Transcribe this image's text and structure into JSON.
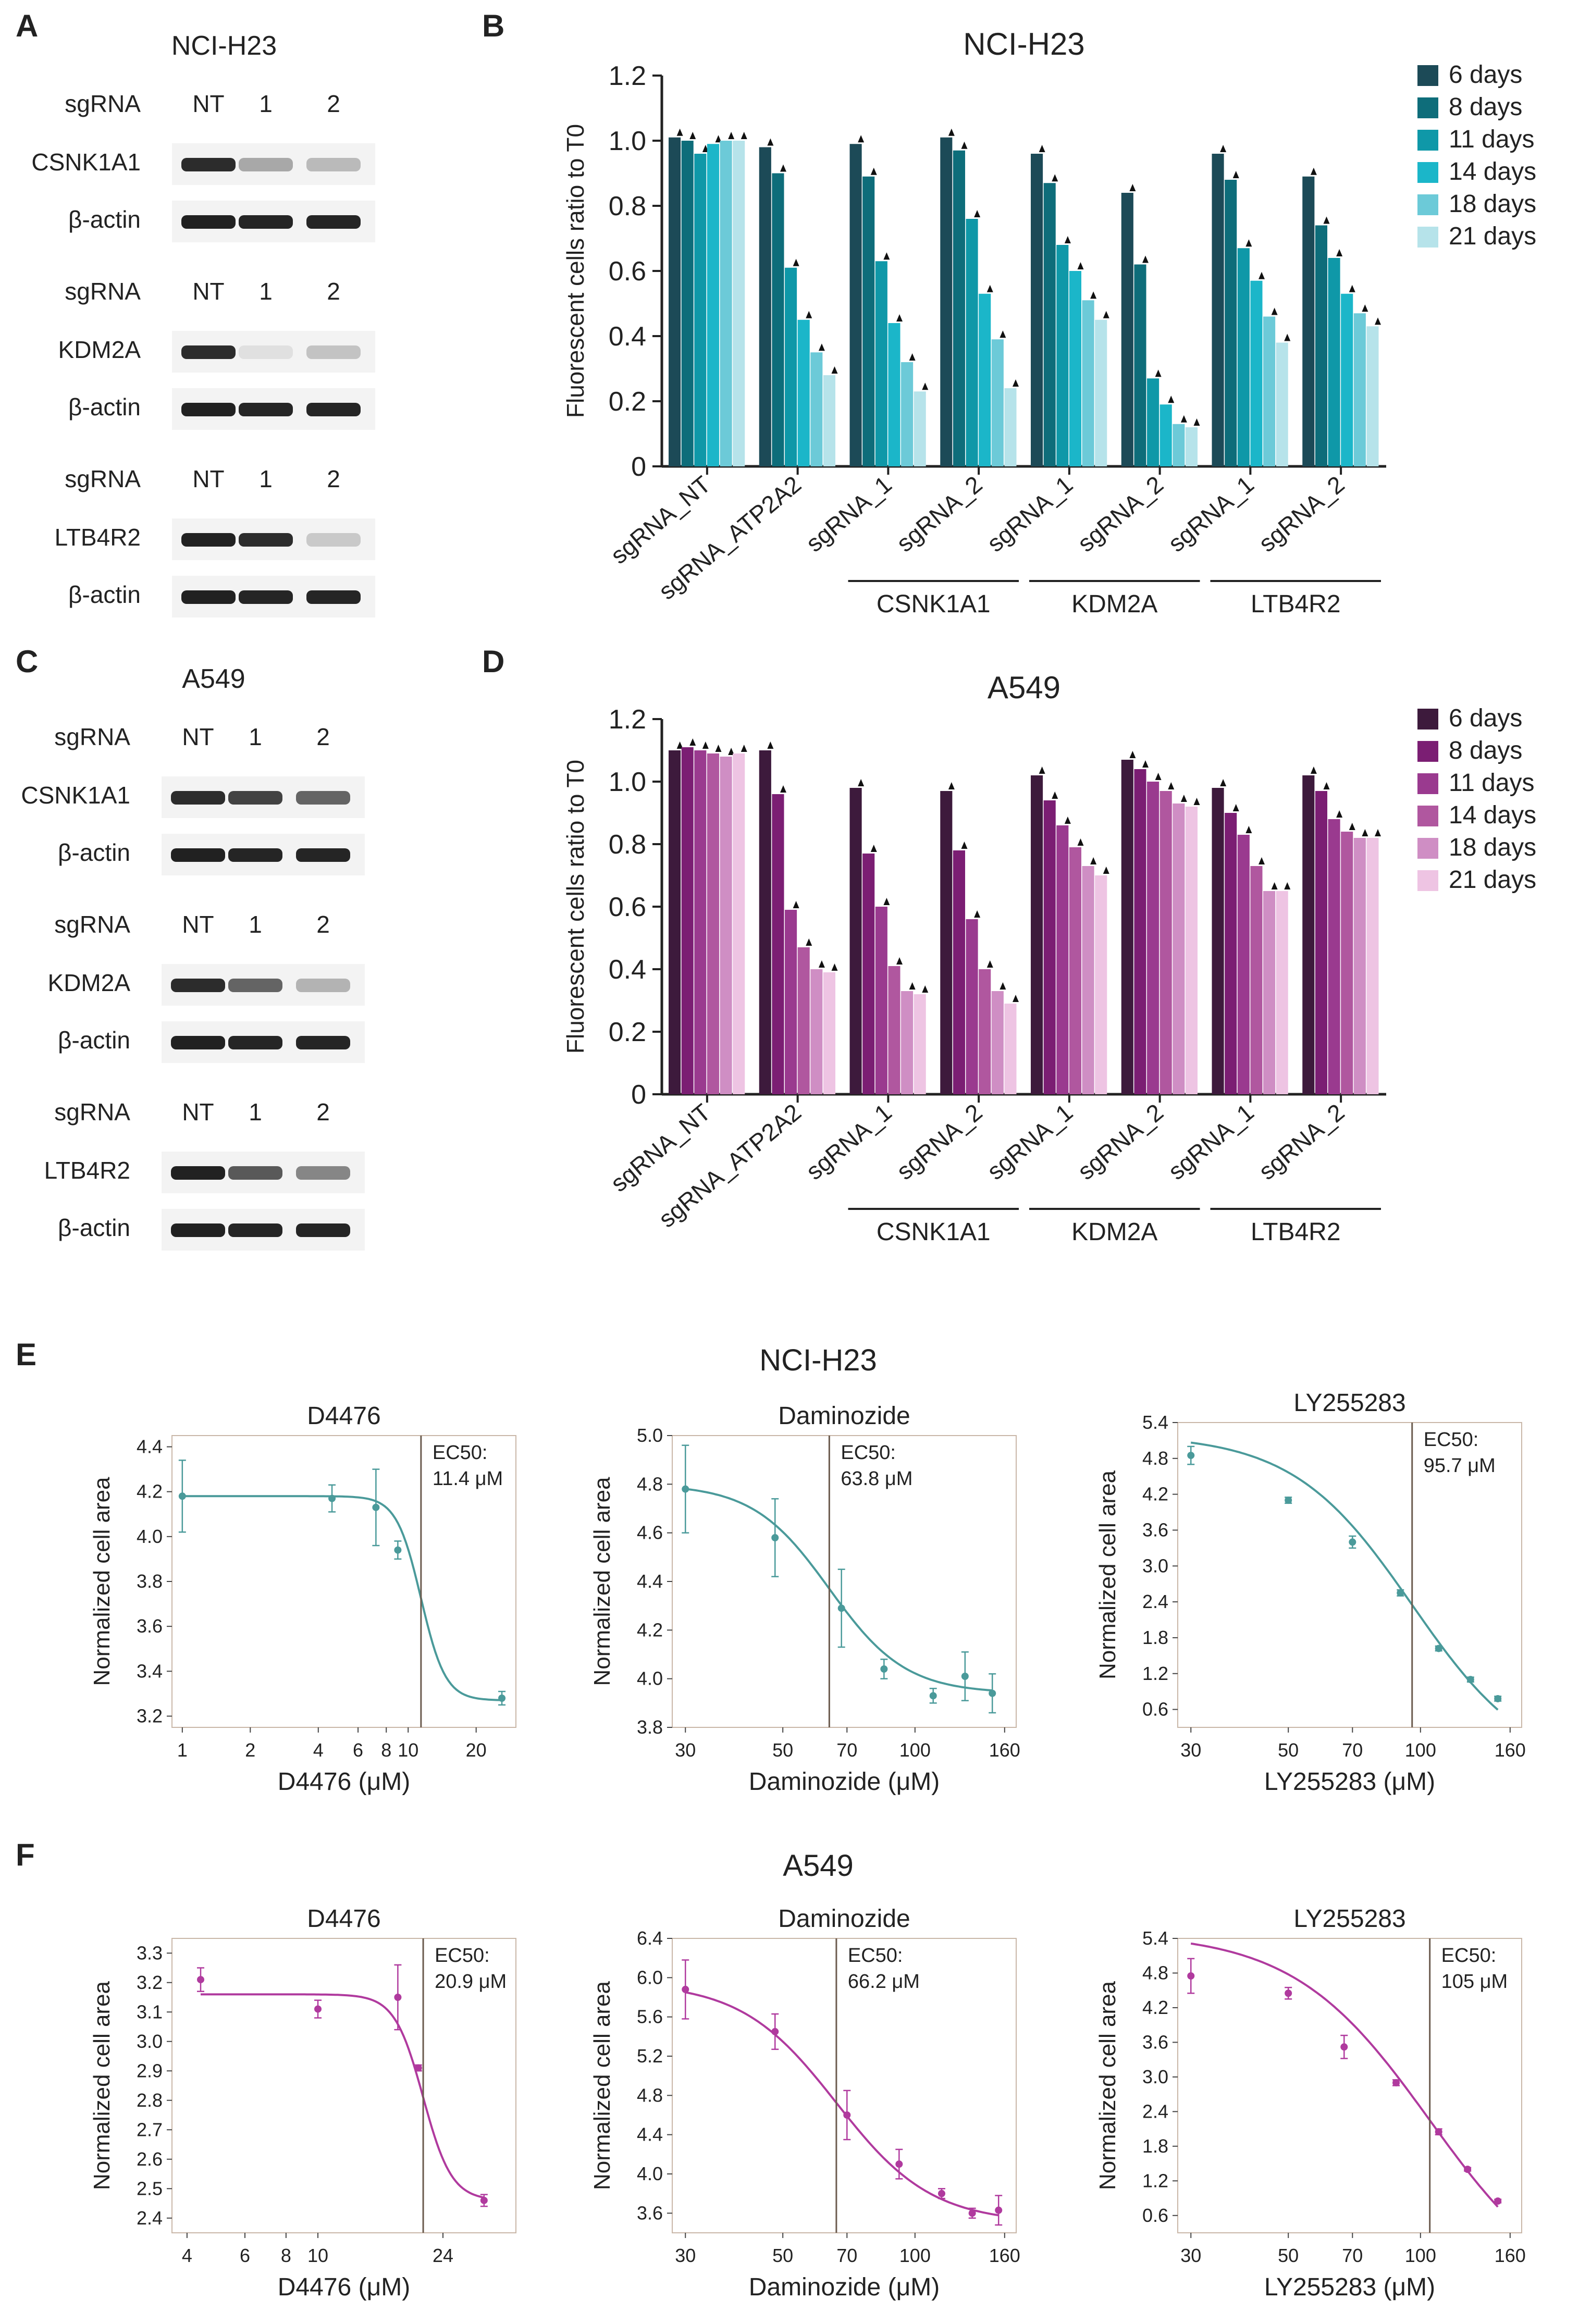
{
  "panel_letters": [
    "A",
    "B",
    "C",
    "D",
    "E",
    "F"
  ],
  "colors": {
    "purple": [
      "#3d1a3c",
      "#7b1e73",
      "#9a3a8f",
      "#b0579f",
      "#cf8ec4",
      "#eec4e3"
    ],
    "teal": [
      "#1c4a57",
      "#0e6d7a",
      "#0f98a8",
      "#1bb6c9",
      "#6ccad8",
      "#b6e3ea"
    ],
    "curve_teal": "#4a9a9a",
    "curve_magenta": "#b03a9e",
    "ec50_line": "#6b5b4e"
  },
  "western_blots": [
    {
      "panel": "A",
      "title": "NCI-H23",
      "groups": [
        {
          "header": [
            "sgRNA",
            "NT",
            "1",
            "2"
          ],
          "rows": [
            {
              "label": "CSNK1A1",
              "intensity": [
                0.85,
                0.3,
                0.22
              ]
            },
            {
              "label": "β-actin",
              "intensity": [
                0.9,
                0.88,
                0.88
              ]
            }
          ]
        },
        {
          "header": [
            "sgRNA",
            "NT",
            "1",
            "2"
          ],
          "rows": [
            {
              "label": "KDM2A",
              "intensity": [
                0.85,
                0.05,
                0.18
              ]
            },
            {
              "label": "β-actin",
              "intensity": [
                0.9,
                0.88,
                0.88
              ]
            }
          ]
        },
        {
          "header": [
            "sgRNA",
            "NT",
            "1",
            "2"
          ],
          "rows": [
            {
              "label": "LTB4R2",
              "intensity": [
                0.9,
                0.85,
                0.15
              ]
            },
            {
              "label": "β-actin",
              "intensity": [
                0.9,
                0.88,
                0.88
              ]
            }
          ]
        }
      ]
    },
    {
      "panel": "C",
      "title": "A549",
      "groups": [
        {
          "header": [
            "sgRNA",
            "NT",
            "1",
            "2"
          ],
          "rows": [
            {
              "label": "CSNK1A1",
              "intensity": [
                0.85,
                0.75,
                0.6
              ]
            },
            {
              "label": "β-actin",
              "intensity": [
                0.9,
                0.88,
                0.88
              ]
            }
          ]
        },
        {
          "header": [
            "sgRNA",
            "NT",
            "1",
            "2"
          ],
          "rows": [
            {
              "label": "KDM2A",
              "intensity": [
                0.85,
                0.6,
                0.25
              ]
            },
            {
              "label": "β-actin",
              "intensity": [
                0.9,
                0.88,
                0.88
              ]
            }
          ]
        },
        {
          "header": [
            "sgRNA",
            "NT",
            "1",
            "2"
          ],
          "rows": [
            {
              "label": "LTB4R2",
              "intensity": [
                0.9,
                0.65,
                0.45
              ]
            },
            {
              "label": "β-actin",
              "intensity": [
                0.9,
                0.88,
                0.88
              ]
            }
          ]
        }
      ]
    }
  ],
  "chart_data": [
    {
      "panel": "B",
      "type": "bar",
      "title": "NCI-H23",
      "ylabel": "Fluorescent cells ratio to T0",
      "ylim": [
        0,
        1.2
      ],
      "yticks": [
        "0",
        "0.2",
        "0.4",
        "0.6",
        "0.8",
        "1.0",
        "1.2"
      ],
      "categories": [
        "sgRNA_NT",
        "sgRNA_ATP2A2",
        "sgRNA_1",
        "sgRNA_2",
        "sgRNA_1",
        "sgRNA_2",
        "sgRNA_1",
        "sgRNA_2"
      ],
      "groups": [
        {
          "label": "CSNK1A1",
          "from": 2,
          "to": 3
        },
        {
          "label": "KDM2A",
          "from": 4,
          "to": 5
        },
        {
          "label": "LTB4R2",
          "from": 6,
          "to": 7
        }
      ],
      "legend_position": "top-right",
      "series": [
        {
          "name": "6 days",
          "values": [
            1.01,
            0.98,
            0.99,
            1.01,
            0.96,
            0.84,
            0.96,
            0.89
          ]
        },
        {
          "name": "8 days",
          "values": [
            1.0,
            0.9,
            0.89,
            0.97,
            0.87,
            0.62,
            0.88,
            0.74
          ]
        },
        {
          "name": "11 days",
          "values": [
            0.96,
            0.61,
            0.63,
            0.76,
            0.68,
            0.27,
            0.67,
            0.64
          ]
        },
        {
          "name": "14 days",
          "values": [
            0.99,
            0.45,
            0.44,
            0.53,
            0.6,
            0.19,
            0.57,
            0.53
          ]
        },
        {
          "name": "18 days",
          "values": [
            1.0,
            0.35,
            0.32,
            0.39,
            0.51,
            0.13,
            0.46,
            0.47
          ]
        },
        {
          "name": "21 days",
          "values": [
            1.0,
            0.28,
            0.23,
            0.24,
            0.45,
            0.12,
            0.38,
            0.43
          ]
        }
      ]
    },
    {
      "panel": "D",
      "type": "bar",
      "title": "A549",
      "ylabel": "Fluorescent cells ratio to T0",
      "ylim": [
        0,
        1.2
      ],
      "yticks": [
        "0",
        "0.2",
        "0.4",
        "0.6",
        "0.8",
        "1.0",
        "1.2"
      ],
      "categories": [
        "sgRNA_NT",
        "sgRNA_ATP2A2",
        "sgRNA_1",
        "sgRNA_2",
        "sgRNA_1",
        "sgRNA_2",
        "sgRNA_1",
        "sgRNA_2"
      ],
      "groups": [
        {
          "label": "CSNK1A1",
          "from": 2,
          "to": 3
        },
        {
          "label": "KDM2A",
          "from": 4,
          "to": 5
        },
        {
          "label": "LTB4R2",
          "from": 6,
          "to": 7
        }
      ],
      "legend_position": "top-right",
      "series": [
        {
          "name": "6 days",
          "values": [
            1.1,
            1.1,
            0.98,
            0.97,
            1.02,
            1.07,
            0.98,
            1.02
          ]
        },
        {
          "name": "8 days",
          "values": [
            1.11,
            0.96,
            0.77,
            0.78,
            0.94,
            1.04,
            0.9,
            0.97
          ]
        },
        {
          "name": "11 days",
          "values": [
            1.1,
            0.59,
            0.6,
            0.56,
            0.86,
            1.0,
            0.83,
            0.88
          ]
        },
        {
          "name": "14 days",
          "values": [
            1.09,
            0.47,
            0.41,
            0.4,
            0.79,
            0.97,
            0.73,
            0.84
          ]
        },
        {
          "name": "18 days",
          "values": [
            1.08,
            0.4,
            0.33,
            0.33,
            0.73,
            0.93,
            0.65,
            0.82
          ]
        },
        {
          "name": "21 days",
          "values": [
            1.09,
            0.39,
            0.32,
            0.29,
            0.7,
            0.92,
            0.65,
            0.82
          ]
        }
      ]
    }
  ],
  "dose_response_rows": [
    {
      "panel": "E",
      "cell_line": "NCI-H23",
      "color_key": "curve_teal",
      "plots": [
        {
          "type": "scatter",
          "title": "D4476",
          "xlabel": "D4476 (μM)",
          "ylabel": "Normalized cell area",
          "x_scale": "log",
          "xlim": [
            0.9,
            30
          ],
          "xticks": [
            {
              "v": 1,
              "l": "1"
            },
            {
              "v": 2,
              "l": "2"
            },
            {
              "v": 4,
              "l": "4"
            },
            {
              "v": 6,
              "l": "6"
            },
            {
              "v": 8,
              "l": "8"
            },
            {
              "v": 10,
              "l": "10"
            },
            {
              "v": 20,
              "l": "20"
            }
          ],
          "ylim": [
            3.15,
            4.45
          ],
          "yticks": [
            "3.2",
            "3.4",
            "3.6",
            "3.8",
            "4.0",
            "4.2",
            "4.4"
          ],
          "ec50_label": "EC50:",
          "ec50_text": "11.4 μM",
          "ec50": 11.4,
          "hill": {
            "top": 4.18,
            "bottom": 3.27,
            "slope": 8
          },
          "points": [
            {
              "x": 1,
              "y": 4.18,
              "err": 0.16
            },
            {
              "x": 4.6,
              "y": 4.17,
              "err": 0.06
            },
            {
              "x": 7.2,
              "y": 4.13,
              "err": 0.17
            },
            {
              "x": 9,
              "y": 3.94,
              "err": 0.04
            },
            {
              "x": 26,
              "y": 3.28,
              "err": 0.03
            }
          ]
        },
        {
          "type": "scatter",
          "title": "Daminozide",
          "xlabel": "Daminozide (μM)",
          "ylabel": "Normalized cell area",
          "x_scale": "log",
          "xlim": [
            28,
            170
          ],
          "xticks": [
            {
              "v": 30,
              "l": "30"
            },
            {
              "v": 50,
              "l": "50"
            },
            {
              "v": 70,
              "l": "70"
            },
            {
              "v": 100,
              "l": "100"
            },
            {
              "v": 160,
              "l": "160"
            }
          ],
          "ylim": [
            3.8,
            5.0
          ],
          "yticks": [
            "3.8",
            "4.0",
            "4.2",
            "4.4",
            "4.6",
            "4.8",
            "5.0"
          ],
          "ec50_label": "EC50:",
          "ec50_text": "63.8 μM",
          "ec50": 63.8,
          "hill": {
            "top": 4.8,
            "bottom": 3.94,
            "slope": 5
          },
          "points": [
            {
              "x": 30,
              "y": 4.78,
              "err": 0.18
            },
            {
              "x": 48,
              "y": 4.58,
              "err": 0.16
            },
            {
              "x": 68,
              "y": 4.29,
              "err": 0.16
            },
            {
              "x": 85,
              "y": 4.04,
              "err": 0.04
            },
            {
              "x": 110,
              "y": 3.93,
              "err": 0.03
            },
            {
              "x": 130,
              "y": 4.01,
              "err": 0.1
            },
            {
              "x": 150,
              "y": 3.94,
              "err": 0.08
            }
          ]
        },
        {
          "type": "scatter",
          "title": "LY255283",
          "xlabel": "LY255283 (μM)",
          "ylabel": "Normalized cell area",
          "x_scale": "log",
          "xlim": [
            28,
            170
          ],
          "xticks": [
            {
              "v": 30,
              "l": "30"
            },
            {
              "v": 50,
              "l": "50"
            },
            {
              "v": 70,
              "l": "70"
            },
            {
              "v": 100,
              "l": "100"
            },
            {
              "v": 160,
              "l": "160"
            }
          ],
          "ylim": [
            0.3,
            5.4
          ],
          "yticks": [
            "0.6",
            "1.2",
            "1.8",
            "2.4",
            "3.0",
            "3.6",
            "4.2",
            "4.8",
            "5.4"
          ],
          "ec50_label": "EC50:",
          "ec50_text": "95.7 μM",
          "ec50": 95.7,
          "hill": {
            "top": 5.2,
            "bottom": -0.5,
            "slope": 3.2
          },
          "points": [
            {
              "x": 30,
              "y": 4.85,
              "err": 0.15
            },
            {
              "x": 50,
              "y": 4.1,
              "err": 0.05
            },
            {
              "x": 70,
              "y": 3.4,
              "err": 0.1
            },
            {
              "x": 90,
              "y": 2.55,
              "err": 0.05
            },
            {
              "x": 110,
              "y": 1.62,
              "err": 0.04
            },
            {
              "x": 130,
              "y": 1.1,
              "err": 0.04
            },
            {
              "x": 150,
              "y": 0.78,
              "err": 0.04
            }
          ]
        }
      ]
    },
    {
      "panel": "F",
      "cell_line": "A549",
      "color_key": "curve_magenta",
      "plots": [
        {
          "type": "scatter",
          "title": "D4476",
          "xlabel": "D4476 (μM)",
          "ylabel": "Normalized cell area",
          "x_scale": "log",
          "xlim": [
            3.6,
            40
          ],
          "xticks": [
            {
              "v": 4,
              "l": "4"
            },
            {
              "v": 6,
              "l": "6"
            },
            {
              "v": 8,
              "l": "8"
            },
            {
              "v": 10,
              "l": "10"
            },
            {
              "v": 24,
              "l": "24"
            }
          ],
          "ylim": [
            2.35,
            3.35
          ],
          "yticks": [
            "2.4",
            "2.5",
            "2.6",
            "2.7",
            "2.8",
            "2.9",
            "3.0",
            "3.1",
            "3.2",
            "3.3"
          ],
          "ec50_label": "EC50:",
          "ec50_text": "20.9 μM",
          "ec50": 20.9,
          "hill": {
            "top": 3.16,
            "bottom": 2.46,
            "slope": 10
          },
          "points": [
            {
              "x": 4.4,
              "y": 3.21,
              "err": 0.04
            },
            {
              "x": 10,
              "y": 3.11,
              "err": 0.03
            },
            {
              "x": 17.5,
              "y": 3.15,
              "err": 0.11
            },
            {
              "x": 20.2,
              "y": 2.91,
              "err": 0.01
            },
            {
              "x": 32,
              "y": 2.46,
              "err": 0.02
            }
          ]
        },
        {
          "type": "scatter",
          "title": "Daminozide",
          "xlabel": "Daminozide (μM)",
          "ylabel": "Normalized cell area",
          "x_scale": "log",
          "xlim": [
            28,
            170
          ],
          "xticks": [
            {
              "v": 30,
              "l": "30"
            },
            {
              "v": 50,
              "l": "50"
            },
            {
              "v": 70,
              "l": "70"
            },
            {
              "v": 100,
              "l": "100"
            },
            {
              "v": 160,
              "l": "160"
            }
          ],
          "ylim": [
            3.4,
            6.4
          ],
          "yticks": [
            "3.6",
            "4.0",
            "4.4",
            "4.8",
            "5.2",
            "5.6",
            "6.0",
            "6.4"
          ],
          "ec50_label": "EC50:",
          "ec50_text": "66.2 μM",
          "ec50": 66.2,
          "hill": {
            "top": 5.95,
            "bottom": 3.5,
            "slope": 4
          },
          "points": [
            {
              "x": 30,
              "y": 5.88,
              "err": 0.3
            },
            {
              "x": 48,
              "y": 5.45,
              "err": 0.18
            },
            {
              "x": 70,
              "y": 4.6,
              "err": 0.25
            },
            {
              "x": 92,
              "y": 4.1,
              "err": 0.15
            },
            {
              "x": 115,
              "y": 3.8,
              "err": 0.05
            },
            {
              "x": 135,
              "y": 3.6,
              "err": 0.05
            },
            {
              "x": 155,
              "y": 3.63,
              "err": 0.15
            }
          ]
        },
        {
          "type": "scatter",
          "title": "LY255283",
          "xlabel": "LY255283 (μM)",
          "ylabel": "Normalized cell area",
          "x_scale": "log",
          "xlim": [
            28,
            170
          ],
          "xticks": [
            {
              "v": 30,
              "l": "30"
            },
            {
              "v": 50,
              "l": "50"
            },
            {
              "v": 70,
              "l": "70"
            },
            {
              "v": 100,
              "l": "100"
            },
            {
              "v": 160,
              "l": "160"
            }
          ],
          "ylim": [
            0.3,
            5.4
          ],
          "yticks": [
            "0.6",
            "1.2",
            "1.8",
            "2.4",
            "3.0",
            "3.6",
            "4.2",
            "4.8",
            "5.4"
          ],
          "ec50_label": "EC50:",
          "ec50_text": "105 μM",
          "ec50": 105,
          "hill": {
            "top": 5.5,
            "bottom": -1.0,
            "slope": 2.8
          },
          "points": [
            {
              "x": 30,
              "y": 4.75,
              "err": 0.3
            },
            {
              "x": 50,
              "y": 4.45,
              "err": 0.1
            },
            {
              "x": 67,
              "y": 3.52,
              "err": 0.2
            },
            {
              "x": 88,
              "y": 2.9,
              "err": 0.05
            },
            {
              "x": 110,
              "y": 2.05,
              "err": 0.05
            },
            {
              "x": 128,
              "y": 1.4,
              "err": 0.03
            },
            {
              "x": 150,
              "y": 0.85,
              "err": 0.03
            }
          ]
        }
      ]
    }
  ]
}
